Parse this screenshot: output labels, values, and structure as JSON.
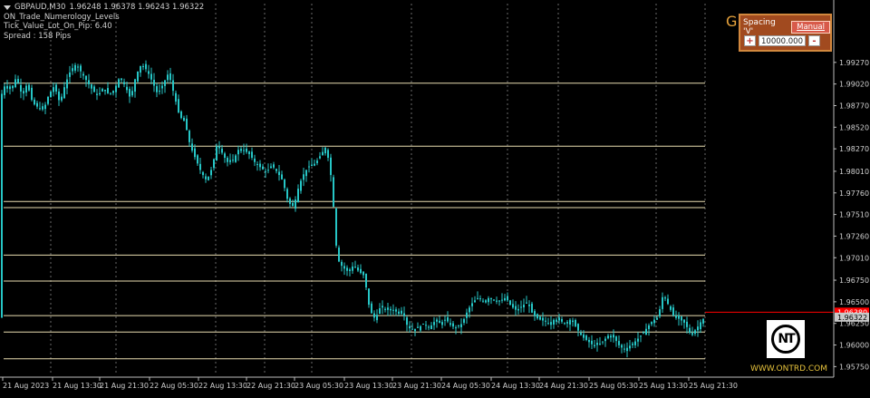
{
  "header": {
    "symbol": "GBPAUD,M30",
    "ohlc": "1.96248 1.96378 1.96243 1.96322",
    "indicator": "ON_Trade_Numerology_Levels",
    "tick_line": "Tick_Value_Lot_On_Pip: 6.40",
    "spread": "Spread : 158  Pips"
  },
  "panel": {
    "g_letter": "G",
    "label": "Spacing 'V'",
    "mode_button": "Manual",
    "plus": "+",
    "value": "10000.000",
    "minus": "-"
  },
  "logo": {
    "text": "NT",
    "site": "WWW.ONTRD.COM"
  },
  "chart_data": {
    "type": "candlestick",
    "symbol": "GBPAUD",
    "timeframe": "M30",
    "ylim": [
      1.9567,
      1.9995
    ],
    "price_ticks": [
      "1.99270",
      "1.99020",
      "1.98770",
      "1.98520",
      "1.98270",
      "1.98010",
      "1.97760",
      "1.97510",
      "1.97260",
      "1.97010",
      "1.96750",
      "1.96500",
      "1.96250",
      "1.96000",
      "1.95750"
    ],
    "time_labels": [
      "21 Aug 2023",
      "21 Aug 13:30",
      "21 Aug 21:30",
      "22 Aug 05:30",
      "22 Aug 13:30",
      "22 Aug 21:30",
      "23 Aug 05:30",
      "23 Aug 13:30",
      "23 Aug 21:30",
      "24 Aug 05:30",
      "24 Aug 13:30",
      "24 Aug 21:30",
      "25 Aug 05:30",
      "25 Aug 13:30",
      "25 Aug 21:30"
    ],
    "levels": [
      1.9903,
      1.983,
      1.9766,
      1.9759,
      1.9704,
      1.9674,
      1.9634,
      1.9615,
      1.9584
    ],
    "current_bid": "1.96322",
    "red_line_label": "1.96380",
    "red_line_value": 1.9638,
    "colors": {
      "bull": "#26c6c6",
      "bear": "#26c6c6",
      "level": "#e8dcb0",
      "red": "#ff0000",
      "grid": "#6a6a6a",
      "axis_text": "#d0d0d0"
    },
    "grid": "dotted vertical",
    "close_path": [
      [
        0,
        1.9885
      ],
      [
        6,
        1.9902
      ],
      [
        12,
        1.9895
      ],
      [
        18,
        1.991
      ],
      [
        24,
        1.989
      ],
      [
        30,
        1.9902
      ],
      [
        36,
        1.988
      ],
      [
        42,
        1.9875
      ],
      [
        48,
        1.9872
      ],
      [
        54,
        1.989
      ],
      [
        60,
        1.99
      ],
      [
        66,
        1.988
      ],
      [
        72,
        1.9902
      ],
      [
        78,
        1.9918
      ],
      [
        84,
        1.9925
      ],
      [
        90,
        1.9915
      ],
      [
        96,
        1.9905
      ],
      [
        102,
        1.9895
      ],
      [
        108,
        1.9888
      ],
      [
        114,
        1.9898
      ],
      [
        120,
        1.989
      ],
      [
        126,
        1.9895
      ],
      [
        132,
        1.991
      ],
      [
        138,
        1.99
      ],
      [
        144,
        1.9885
      ],
      [
        150,
        1.9912
      ],
      [
        156,
        1.9925
      ],
      [
        162,
        1.9918
      ],
      [
        168,
        1.9905
      ],
      [
        174,
        1.989
      ],
      [
        180,
        1.9902
      ],
      [
        186,
        1.9915
      ],
      [
        192,
        1.989
      ],
      [
        198,
        1.9865
      ],
      [
        204,
        1.9858
      ],
      [
        210,
        1.983
      ],
      [
        216,
        1.9815
      ],
      [
        222,
        1.98
      ],
      [
        228,
        1.979
      ],
      [
        234,
        1.9805
      ],
      [
        240,
        1.9835
      ],
      [
        246,
        1.982
      ],
      [
        252,
        1.981
      ],
      [
        258,
        1.9815
      ],
      [
        264,
        1.9828
      ],
      [
        270,
        1.9825
      ],
      [
        276,
        1.982
      ],
      [
        282,
        1.981
      ],
      [
        288,
        1.9805
      ],
      [
        294,
        1.98
      ],
      [
        300,
        1.9808
      ],
      [
        306,
        1.98
      ],
      [
        312,
        1.979
      ],
      [
        318,
        1.9765
      ],
      [
        324,
        1.976
      ],
      [
        330,
        1.9785
      ],
      [
        336,
        1.98
      ],
      [
        342,
        1.9808
      ],
      [
        348,
        1.981
      ],
      [
        354,
        1.982
      ],
      [
        360,
        1.983
      ],
      [
        366,
        1.979
      ],
      [
        372,
        1.97
      ],
      [
        378,
        1.969
      ],
      [
        384,
        1.9685
      ],
      [
        390,
        1.9692
      ],
      [
        396,
        1.9685
      ],
      [
        402,
        1.968
      ],
      [
        408,
        1.964
      ],
      [
        414,
        1.963
      ],
      [
        420,
        1.9645
      ],
      [
        426,
        1.964
      ],
      [
        432,
        1.9642
      ],
      [
        438,
        1.9638
      ],
      [
        444,
        1.964
      ],
      [
        450,
        1.962
      ],
      [
        456,
        1.9618
      ],
      [
        462,
        1.962
      ],
      [
        468,
        1.9625
      ],
      [
        474,
        1.962
      ],
      [
        480,
        1.9628
      ],
      [
        486,
        1.9625
      ],
      [
        492,
        1.963
      ],
      [
        498,
        1.9622
      ],
      [
        504,
        1.962
      ],
      [
        510,
        1.9625
      ],
      [
        516,
        1.964
      ],
      [
        522,
        1.965
      ],
      [
        528,
        1.9655
      ],
      [
        534,
        1.965
      ],
      [
        540,
        1.9655
      ],
      [
        546,
        1.9652
      ],
      [
        552,
        1.965
      ],
      [
        558,
        1.9655
      ],
      [
        564,
        1.9645
      ],
      [
        570,
        1.964
      ],
      [
        576,
        1.9645
      ],
      [
        582,
        1.965
      ],
      [
        588,
        1.9635
      ],
      [
        594,
        1.963
      ],
      [
        600,
        1.9628
      ],
      [
        606,
        1.9625
      ],
      [
        612,
        1.963
      ],
      [
        618,
        1.9628
      ],
      [
        624,
        1.9625
      ],
      [
        630,
        1.963
      ],
      [
        636,
        1.962
      ],
      [
        642,
        1.961
      ],
      [
        648,
        1.9605
      ],
      [
        654,
        1.96
      ],
      [
        660,
        1.96
      ],
      [
        666,
        1.9605
      ],
      [
        672,
        1.9612
      ],
      [
        678,
        1.9608
      ],
      [
        684,
        1.9598
      ],
      [
        690,
        1.9595
      ],
      [
        696,
        1.96
      ],
      [
        702,
        1.9605
      ],
      [
        708,
        1.9612
      ],
      [
        714,
        1.962
      ],
      [
        720,
        1.9628
      ],
      [
        726,
        1.9632
      ],
      [
        732,
        1.966
      ],
      [
        738,
        1.9645
      ],
      [
        744,
        1.9632
      ],
      [
        750,
        1.963
      ],
      [
        756,
        1.9625
      ],
      [
        762,
        1.9612
      ],
      [
        768,
        1.9618
      ],
      [
        774,
        1.9628
      ],
      [
        778,
        1.9632
      ]
    ]
  }
}
